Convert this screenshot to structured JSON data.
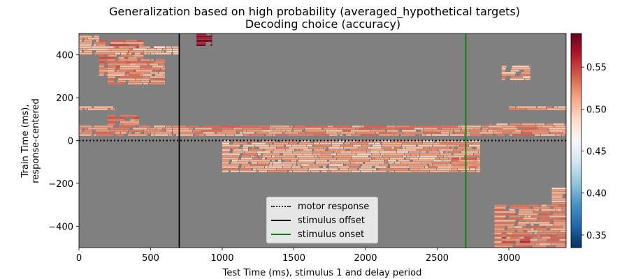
{
  "chart_data": {
    "type": "heatmap",
    "title": "Generalization based on high probability (averaged_hypothetical targets)",
    "subtitle": "Decoding choice (accuracy)",
    "xlabel": "Test Time (ms), stimulus 1 and delay period",
    "ylabel_line1": "Train Time (ms),",
    "ylabel_line2": "response-centered",
    "xlim": [
      0,
      3400
    ],
    "ylim": [
      -500,
      500
    ],
    "xticks": [
      0,
      500,
      1000,
      1500,
      2000,
      2500,
      3000
    ],
    "xtick_labels": [
      "0",
      "500",
      "1000",
      "1500",
      "2000",
      "2500",
      "3000"
    ],
    "yticks": [
      -400,
      -200,
      0,
      200,
      400
    ],
    "ytick_labels": [
      "−400",
      "−200",
      "0",
      "200",
      "400"
    ],
    "colorbar": {
      "vmin": 0.335,
      "vmax": 0.59,
      "cmap": "RdBu_r",
      "ticks": [
        0.35,
        0.4,
        0.45,
        0.5,
        0.55
      ],
      "tick_labels": [
        "0.35",
        "0.40",
        "0.45",
        "0.50",
        "0.55"
      ]
    },
    "masked_color": "#808080",
    "significant_regions": [
      {
        "x": [
          0,
          3400
        ],
        "y": [
          70,
          20
        ],
        "value": 0.52
      },
      {
        "x": [
          0,
          140
        ],
        "y": [
          490,
          420
        ],
        "value": 0.51
      },
      {
        "x": [
          140,
          450
        ],
        "y": [
          470,
          300
        ],
        "value": 0.53
      },
      {
        "x": [
          200,
          600
        ],
        "y": [
          380,
          260
        ],
        "value": 0.52
      },
      {
        "x": [
          0,
          250
        ],
        "y": [
          160,
          140
        ],
        "value": 0.51
      },
      {
        "x": [
          200,
          420
        ],
        "y": [
          120,
          70
        ],
        "value": 0.53
      },
      {
        "x": [
          820,
          930
        ],
        "y": [
          500,
          440
        ],
        "value": 0.58
      },
      {
        "x": [
          0,
          700
        ],
        "y": [
          440,
          400
        ],
        "value": 0.505
      },
      {
        "x": [
          1000,
          2800
        ],
        "y": [
          0,
          -150
        ],
        "value": 0.51
      },
      {
        "x": [
          2600,
          2780
        ],
        "y": [
          -80,
          -130
        ],
        "value": 0.53
      },
      {
        "x": [
          2860,
          3400
        ],
        "y": [
          80,
          40
        ],
        "value": 0.52
      },
      {
        "x": [
          3000,
          3400
        ],
        "y": [
          160,
          140
        ],
        "value": 0.51
      },
      {
        "x": [
          2950,
          3150
        ],
        "y": [
          350,
          280
        ],
        "value": 0.51
      },
      {
        "x": [
          2900,
          3400
        ],
        "y": [
          -300,
          -500
        ],
        "value": 0.52
      },
      {
        "x": [
          2950,
          3150
        ],
        "y": [
          -430,
          -480
        ],
        "value": 0.54
      },
      {
        "x": [
          3300,
          3400
        ],
        "y": [
          -220,
          -300
        ],
        "value": 0.51
      }
    ],
    "vlines": [
      {
        "x": 700,
        "color": "#000000",
        "style": "solid",
        "label": "stimulus offset"
      },
      {
        "x": 2700,
        "color": "#008000",
        "style": "solid",
        "label": "stimulus onset"
      }
    ],
    "hlines": [
      {
        "y": 0,
        "color": "#000000",
        "style": "dotted",
        "label": "motor response"
      }
    ],
    "legend": {
      "position": "lower center",
      "entries": [
        {
          "label": "motor response",
          "style": "dotted",
          "color": "#000000"
        },
        {
          "label": "stimulus offset",
          "style": "solid",
          "color": "#000000"
        },
        {
          "label": "stimulus onset",
          "style": "solid",
          "color": "#008000"
        }
      ]
    }
  }
}
